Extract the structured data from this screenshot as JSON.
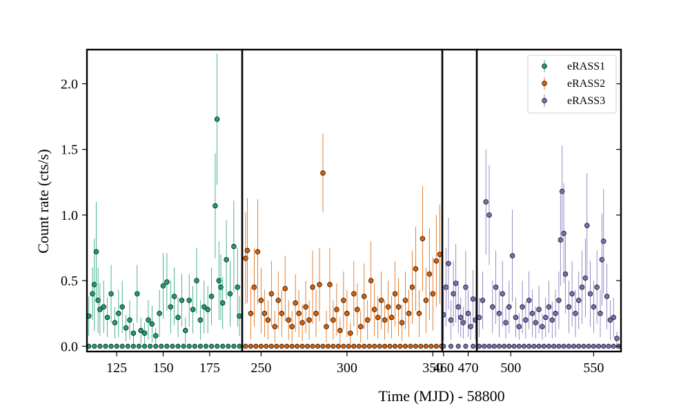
{
  "chart_data": {
    "type": "scatter",
    "title": "",
    "xlabel": "Time (MJD) - 58800",
    "ylabel": "Count rate (cts/s)",
    "ylim": [
      -0.04,
      2.26
    ],
    "yticks": [
      0.0,
      0.5,
      1.0,
      1.5,
      2.0
    ],
    "ytick_labels": [
      "0.0",
      "0.5",
      "1.0",
      "1.5",
      "2.0"
    ],
    "grid": false,
    "legend_position": "top-right",
    "error_bars": true,
    "segments": [
      {
        "series": "eRASS1",
        "xlim": [
          109,
          192.5
        ],
        "xticks": [
          125,
          150,
          175
        ],
        "xtick_labels": [
          "125",
          "150",
          "175"
        ]
      },
      {
        "series": "eRASS2",
        "xlim": [
          239,
          355.5
        ],
        "xticks": [
          250,
          300,
          350
        ],
        "xtick_labels": [
          "250",
          "300",
          "350"
        ]
      },
      {
        "series": "eRASS3",
        "xlim": [
          459.5,
          473.5
        ],
        "xticks": [
          460,
          470
        ],
        "xtick_labels": [
          "460",
          "470"
        ]
      },
      {
        "series": "eRASS3",
        "xlim": [
          479.5,
          566.5
        ],
        "xticks": [
          500,
          550
        ],
        "xtick_labels": [
          "500",
          "550"
        ]
      }
    ],
    "series": [
      {
        "name": "eRASS1",
        "color": "#1b9e77",
        "x": [
          110,
          112,
          113,
          114,
          115,
          116,
          118,
          120,
          122,
          124,
          126,
          128,
          130,
          132,
          134,
          136,
          138,
          140,
          142,
          144,
          146,
          148,
          150,
          152,
          154,
          156,
          158,
          160,
          162,
          164,
          166,
          168,
          170,
          172,
          174,
          176,
          178,
          179,
          180,
          181,
          182,
          184,
          186,
          188,
          190,
          191
        ],
        "y": [
          0.23,
          0.4,
          0.47,
          0.72,
          0.35,
          0.28,
          0.3,
          0.22,
          0.4,
          0.18,
          0.25,
          0.3,
          0.14,
          0.2,
          0.1,
          0.4,
          0.12,
          0.1,
          0.2,
          0.17,
          0.08,
          0.25,
          0.46,
          0.49,
          0.3,
          0.38,
          0.22,
          0.35,
          0.12,
          0.35,
          0.28,
          0.5,
          0.2,
          0.3,
          0.28,
          0.38,
          1.07,
          1.73,
          0.5,
          0.45,
          0.33,
          0.66,
          0.4,
          0.76,
          0.45,
          0.23
        ],
        "yerr": [
          0.15,
          0.2,
          0.35,
          0.38,
          0.25,
          0.2,
          0.2,
          0.15,
          0.22,
          0.12,
          0.18,
          0.2,
          0.1,
          0.15,
          0.08,
          0.22,
          0.1,
          0.08,
          0.15,
          0.14,
          0.06,
          0.18,
          0.25,
          0.22,
          0.2,
          0.22,
          0.15,
          0.2,
          0.1,
          0.2,
          0.18,
          0.25,
          0.15,
          0.2,
          0.18,
          0.22,
          0.4,
          0.5,
          0.3,
          0.25,
          0.2,
          0.3,
          0.25,
          0.35,
          0.3,
          0.15
        ],
        "zeros_x": [
          110,
          113,
          116,
          119,
          122,
          125,
          128,
          131,
          134,
          137,
          140,
          143,
          146,
          149,
          152,
          155,
          158,
          161,
          164,
          167,
          170,
          173,
          176,
          179,
          182,
          185,
          188,
          191
        ],
        "legend_label": "eRASS1"
      },
      {
        "name": "eRASS2",
        "color": "#d95f02",
        "x": [
          241,
          242,
          244,
          246,
          248,
          250,
          252,
          254,
          256,
          258,
          260,
          262,
          264,
          266,
          268,
          270,
          272,
          274,
          276,
          278,
          280,
          282,
          284,
          286,
          288,
          290,
          292,
          294,
          296,
          298,
          300,
          302,
          304,
          306,
          308,
          310,
          312,
          314,
          316,
          318,
          320,
          322,
          324,
          326,
          328,
          330,
          332,
          334,
          336,
          338,
          340,
          342,
          344,
          346,
          348,
          350,
          352,
          354
        ],
        "y": [
          0.67,
          0.73,
          0.25,
          0.45,
          0.72,
          0.35,
          0.25,
          0.2,
          0.4,
          0.15,
          0.35,
          0.25,
          0.44,
          0.2,
          0.15,
          0.33,
          0.25,
          0.18,
          0.3,
          0.2,
          0.45,
          0.25,
          0.47,
          1.32,
          0.15,
          0.47,
          0.2,
          0.28,
          0.12,
          0.35,
          0.25,
          0.1,
          0.4,
          0.28,
          0.15,
          0.38,
          0.2,
          0.5,
          0.28,
          0.22,
          0.35,
          0.2,
          0.3,
          0.22,
          0.4,
          0.3,
          0.18,
          0.35,
          0.25,
          0.45,
          0.59,
          0.25,
          0.82,
          0.35,
          0.55,
          0.4,
          0.65,
          0.7
        ],
        "yerr": [
          0.35,
          0.4,
          0.2,
          0.3,
          0.4,
          0.25,
          0.18,
          0.15,
          0.25,
          0.12,
          0.22,
          0.18,
          0.25,
          0.15,
          0.12,
          0.22,
          0.18,
          0.14,
          0.2,
          0.15,
          0.28,
          0.18,
          0.28,
          0.3,
          0.12,
          0.28,
          0.15,
          0.2,
          0.1,
          0.22,
          0.18,
          0.08,
          0.25,
          0.2,
          0.12,
          0.25,
          0.15,
          0.3,
          0.2,
          0.16,
          0.22,
          0.15,
          0.2,
          0.16,
          0.25,
          0.22,
          0.14,
          0.22,
          0.18,
          0.28,
          0.32,
          0.18,
          0.4,
          0.25,
          0.35,
          0.28,
          0.35,
          0.38
        ],
        "zeros_x": [
          241,
          244,
          247,
          250,
          253,
          256,
          259,
          262,
          265,
          268,
          271,
          274,
          277,
          280,
          283,
          286,
          289,
          292,
          295,
          298,
          301,
          304,
          307,
          310,
          313,
          316,
          319,
          322,
          325,
          328,
          331,
          334,
          337,
          340,
          343,
          346,
          349,
          352,
          355
        ],
        "legend_label": "eRASS2"
      },
      {
        "name": "eRASS3",
        "color": "#7570b3",
        "x": [
          460,
          461,
          462,
          463,
          464,
          465,
          466,
          467,
          468,
          469,
          470,
          471,
          472,
          473,
          481,
          483,
          485,
          487,
          489,
          491,
          493,
          495,
          497,
          499,
          501,
          503,
          505,
          507,
          509,
          511,
          513,
          515,
          517,
          519,
          521,
          523,
          525,
          527,
          529,
          530,
          531,
          532,
          533,
          535,
          537,
          539,
          541,
          543,
          545,
          546,
          548,
          550,
          552,
          554,
          555,
          556,
          558,
          560,
          562,
          564
        ],
        "y": [
          0.24,
          0.45,
          0.63,
          0.2,
          0.4,
          0.48,
          0.3,
          0.22,
          0.18,
          0.45,
          0.25,
          0.15,
          0.36,
          0.2,
          0.22,
          0.35,
          1.1,
          1.0,
          0.3,
          0.45,
          0.25,
          0.4,
          0.18,
          0.3,
          0.69,
          0.22,
          0.15,
          0.3,
          0.2,
          0.35,
          0.25,
          0.18,
          0.28,
          0.15,
          0.22,
          0.3,
          0.2,
          0.25,
          0.35,
          0.81,
          1.18,
          0.86,
          0.55,
          0.3,
          0.4,
          0.25,
          0.35,
          0.45,
          0.52,
          0.92,
          0.4,
          0.3,
          0.45,
          0.25,
          0.66,
          0.8,
          0.38,
          0.2,
          0.22,
          0.06
        ],
        "yerr": [
          0.2,
          0.3,
          0.35,
          0.15,
          0.25,
          0.3,
          0.2,
          0.15,
          0.12,
          0.28,
          0.18,
          0.1,
          0.22,
          0.15,
          0.15,
          0.22,
          0.4,
          0.38,
          0.2,
          0.28,
          0.18,
          0.25,
          0.12,
          0.2,
          0.35,
          0.15,
          0.1,
          0.2,
          0.14,
          0.22,
          0.18,
          0.12,
          0.18,
          0.1,
          0.15,
          0.2,
          0.14,
          0.18,
          0.22,
          0.35,
          0.35,
          0.38,
          0.3,
          0.2,
          0.25,
          0.18,
          0.22,
          0.28,
          0.3,
          0.4,
          0.25,
          0.2,
          0.28,
          0.18,
          0.35,
          0.4,
          0.25,
          0.15,
          0.15,
          0.05
        ],
        "zeros_x": [
          460,
          463,
          466,
          469,
          472,
          481,
          484,
          487,
          490,
          493,
          496,
          499,
          502,
          505,
          508,
          511,
          514,
          517,
          520,
          523,
          526,
          529,
          532,
          535,
          538,
          541,
          544,
          547,
          550,
          553,
          556,
          559,
          562,
          565
        ],
        "legend_label": "eRASS3"
      }
    ]
  }
}
